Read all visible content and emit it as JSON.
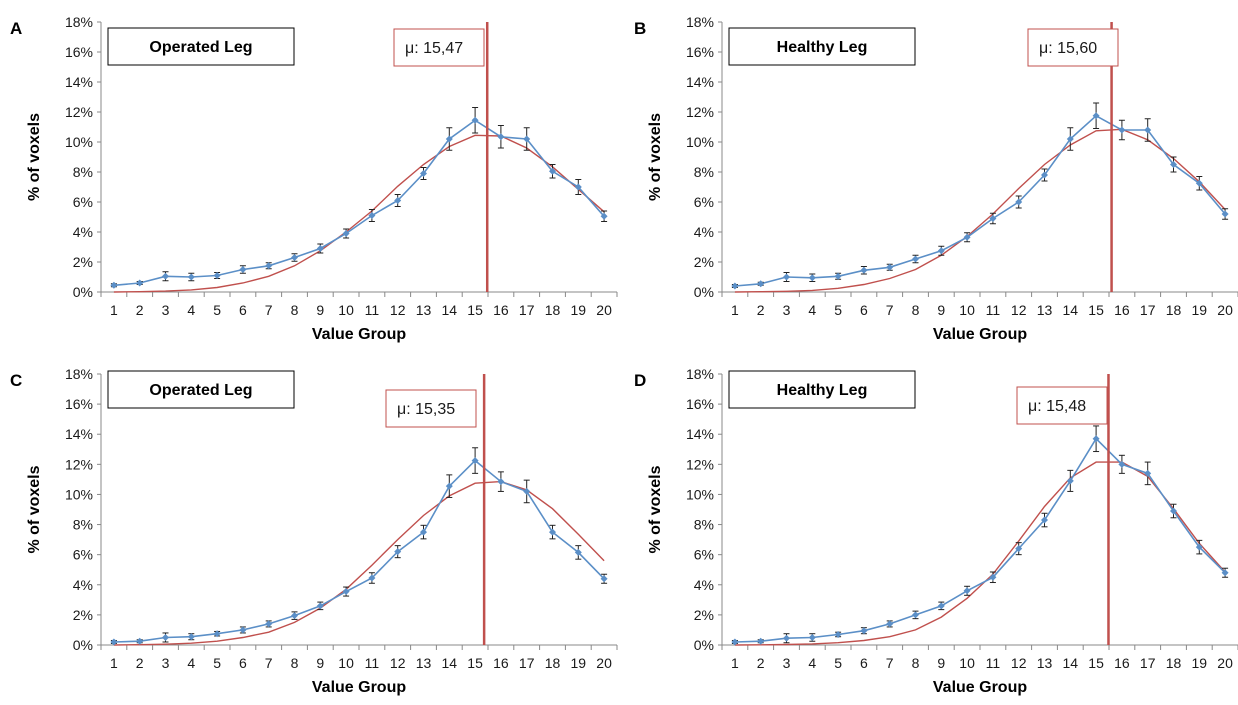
{
  "chart_data": [
    {
      "type": "line",
      "panel": "A",
      "title": "Operated Leg",
      "xlabel": "Value Group",
      "ylabel": "% of voxels",
      "x": [
        1,
        2,
        3,
        4,
        5,
        6,
        7,
        8,
        9,
        10,
        11,
        12,
        13,
        14,
        15,
        16,
        17,
        18,
        19,
        20
      ],
      "ylim": [
        0,
        18
      ],
      "yticks": [
        "0%",
        "2%",
        "4%",
        "6%",
        "8%",
        "10%",
        "12%",
        "14%",
        "16%",
        "18%"
      ],
      "grid": false,
      "mean": 15.47,
      "mean_label": "μ: 15,47",
      "series": [
        {
          "color": "#5b8fc7",
          "markers": true,
          "values": [
            0.45,
            0.6,
            1.05,
            1.0,
            1.1,
            1.5,
            1.75,
            2.3,
            2.9,
            3.9,
            5.1,
            6.1,
            7.9,
            10.2,
            11.45,
            10.35,
            10.2,
            8.05,
            7.0,
            5.05
          ],
          "errors": [
            0.1,
            0.1,
            0.3,
            0.25,
            0.2,
            0.25,
            0.2,
            0.25,
            0.3,
            0.3,
            0.4,
            0.4,
            0.4,
            0.75,
            0.85,
            0.75,
            0.75,
            0.45,
            0.5,
            0.35
          ]
        },
        {
          "color": "#c0504d",
          "markers": false,
          "values": [
            0.0,
            0.02,
            0.06,
            0.14,
            0.3,
            0.6,
            1.05,
            1.75,
            2.75,
            4.0,
            5.4,
            7.05,
            8.5,
            9.7,
            10.45,
            10.4,
            9.6,
            8.35,
            6.85,
            5.35
          ]
        }
      ]
    },
    {
      "type": "line",
      "panel": "B",
      "title": "Healthy Leg",
      "xlabel": "Value Group",
      "ylabel": "% of voxels",
      "x": [
        1,
        2,
        3,
        4,
        5,
        6,
        7,
        8,
        9,
        10,
        11,
        12,
        13,
        14,
        15,
        16,
        17,
        18,
        19,
        20
      ],
      "ylim": [
        0,
        18
      ],
      "yticks": [
        "0%",
        "2%",
        "4%",
        "6%",
        "8%",
        "10%",
        "12%",
        "14%",
        "16%",
        "18%"
      ],
      "grid": false,
      "mean": 15.6,
      "mean_label": "μ: 15,60",
      "series": [
        {
          "color": "#5b8fc7",
          "markers": true,
          "values": [
            0.4,
            0.55,
            1.0,
            0.95,
            1.05,
            1.45,
            1.65,
            2.2,
            2.75,
            3.65,
            4.9,
            6.0,
            7.8,
            10.2,
            11.75,
            10.8,
            10.8,
            8.5,
            7.25,
            5.2
          ],
          "errors": [
            0.1,
            0.1,
            0.3,
            0.25,
            0.2,
            0.25,
            0.2,
            0.25,
            0.3,
            0.3,
            0.35,
            0.4,
            0.4,
            0.75,
            0.85,
            0.65,
            0.75,
            0.5,
            0.45,
            0.35
          ]
        },
        {
          "color": "#c0504d",
          "markers": false,
          "values": [
            0.0,
            0.02,
            0.05,
            0.11,
            0.25,
            0.5,
            0.9,
            1.5,
            2.45,
            3.7,
            5.2,
            6.9,
            8.5,
            9.8,
            10.75,
            10.85,
            10.15,
            8.9,
            7.35,
            5.5
          ]
        }
      ]
    },
    {
      "type": "line",
      "panel": "C",
      "title": "Operated Leg",
      "xlabel": "Value Group",
      "ylabel": "% of voxels",
      "x": [
        1,
        2,
        3,
        4,
        5,
        6,
        7,
        8,
        9,
        10,
        11,
        12,
        13,
        14,
        15,
        16,
        17,
        18,
        19,
        20
      ],
      "ylim": [
        0,
        18
      ],
      "yticks": [
        "0%",
        "2%",
        "4%",
        "6%",
        "8%",
        "10%",
        "12%",
        "14%",
        "16%",
        "18%"
      ],
      "grid": false,
      "mean": 15.35,
      "mean_label": "μ: 15,35",
      "series": [
        {
          "color": "#5b8fc7",
          "markers": true,
          "values": [
            0.2,
            0.25,
            0.5,
            0.55,
            0.75,
            1.0,
            1.4,
            1.95,
            2.6,
            3.55,
            4.45,
            6.2,
            7.5,
            10.55,
            12.25,
            10.85,
            10.2,
            7.5,
            6.15,
            4.4
          ],
          "errors": [
            0.1,
            0.1,
            0.3,
            0.2,
            0.15,
            0.2,
            0.2,
            0.25,
            0.25,
            0.3,
            0.35,
            0.4,
            0.45,
            0.75,
            0.85,
            0.65,
            0.75,
            0.45,
            0.45,
            0.3
          ]
        },
        {
          "color": "#c0504d",
          "markers": false,
          "values": [
            0.0,
            0.02,
            0.05,
            0.12,
            0.25,
            0.5,
            0.85,
            1.5,
            2.45,
            3.7,
            5.3,
            7.0,
            8.6,
            9.9,
            10.75,
            10.85,
            10.3,
            9.05,
            7.35,
            5.6
          ]
        }
      ]
    },
    {
      "type": "line",
      "panel": "D",
      "title": "Healthy Leg",
      "xlabel": "Value Group",
      "ylabel": "% of voxels",
      "x": [
        1,
        2,
        3,
        4,
        5,
        6,
        7,
        8,
        9,
        10,
        11,
        12,
        13,
        14,
        15,
        16,
        17,
        18,
        19,
        20
      ],
      "ylim": [
        0,
        18
      ],
      "yticks": [
        "0%",
        "2%",
        "4%",
        "6%",
        "8%",
        "10%",
        "12%",
        "14%",
        "16%",
        "18%"
      ],
      "grid": false,
      "mean": 15.48,
      "mean_label": "μ: 15,48",
      "series": [
        {
          "color": "#5b8fc7",
          "markers": true,
          "values": [
            0.2,
            0.25,
            0.45,
            0.5,
            0.7,
            0.95,
            1.4,
            2.0,
            2.6,
            3.6,
            4.5,
            6.4,
            8.3,
            10.9,
            13.7,
            12.0,
            11.4,
            8.9,
            6.5,
            4.8
          ],
          "errors": [
            0.1,
            0.1,
            0.3,
            0.25,
            0.15,
            0.2,
            0.2,
            0.25,
            0.25,
            0.3,
            0.35,
            0.4,
            0.45,
            0.7,
            0.85,
            0.6,
            0.75,
            0.45,
            0.45,
            0.3
          ]
        },
        {
          "color": "#c0504d",
          "markers": false,
          "values": [
            0.0,
            0.01,
            0.03,
            0.07,
            0.15,
            0.3,
            0.55,
            1.0,
            1.85,
            3.1,
            4.7,
            6.9,
            9.2,
            11.1,
            12.15,
            12.15,
            11.2,
            9.05,
            6.75,
            4.85
          ]
        }
      ]
    }
  ]
}
